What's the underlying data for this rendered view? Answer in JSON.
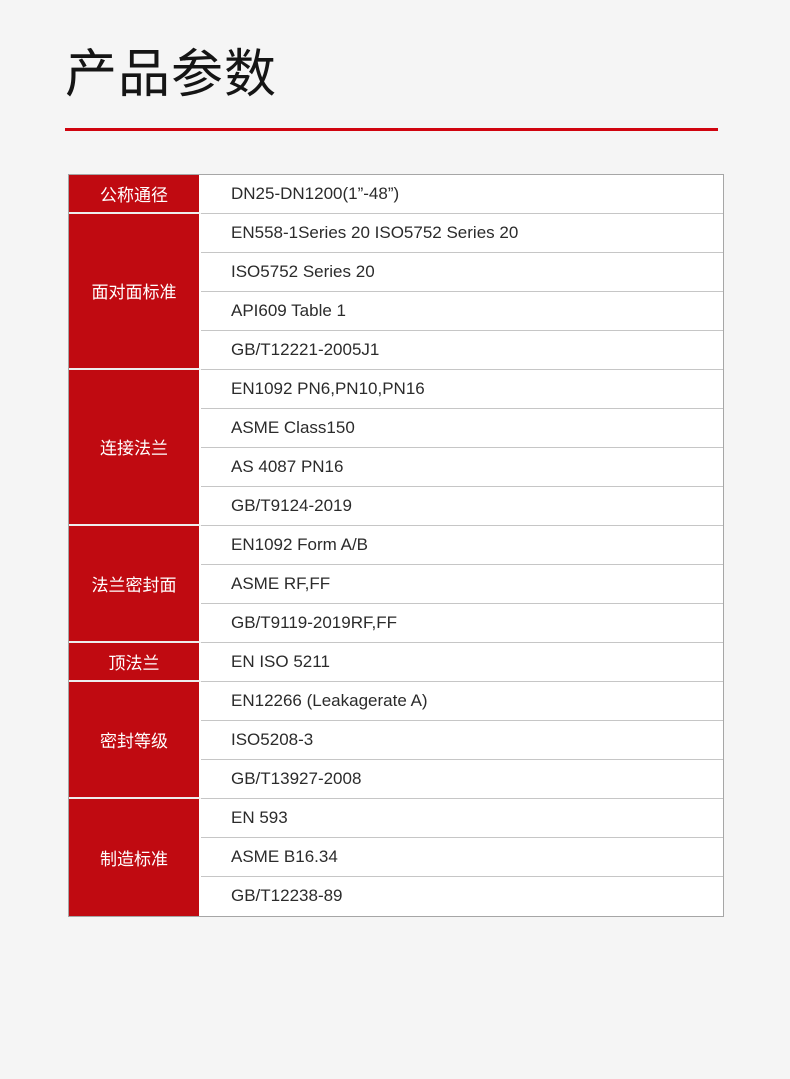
{
  "page": {
    "background_color": "#f5f5f5"
  },
  "header": {
    "title": "产品参数",
    "underline_color": "#d0040f"
  },
  "table": {
    "label_bg_color": "#c00a11",
    "label_text_color": "#ffffff",
    "value_text_color": "#2b2b2b",
    "border_color": "#c6c6c6",
    "groups": [
      {
        "label": "公称通径",
        "values": [
          "DN25-DN1200(1”-48”)"
        ]
      },
      {
        "label": "面对面标准",
        "values": [
          "EN558-1Series 20 ISO5752 Series 20",
          "ISO5752 Series 20",
          "API609 Table 1",
          "GB/T12221-2005J1"
        ]
      },
      {
        "label": "连接法兰",
        "values": [
          "EN1092 PN6,PN10,PN16",
          "ASME Class150",
          "AS 4087 PN16",
          "GB/T9124-2019"
        ]
      },
      {
        "label": "法兰密封面",
        "values": [
          "EN1092 Form A/B",
          "ASME RF,FF",
          "GB/T9119-2019RF,FF"
        ]
      },
      {
        "label": "顶法兰",
        "values": [
          "EN ISO 5211"
        ]
      },
      {
        "label": "密封等级",
        "values": [
          "EN12266 (Leakagerate A)",
          "ISO5208-3",
          "GB/T13927-2008"
        ]
      },
      {
        "label": "制造标准",
        "values": [
          "EN 593",
          "ASME B16.34",
          "GB/T12238-89"
        ]
      }
    ]
  }
}
